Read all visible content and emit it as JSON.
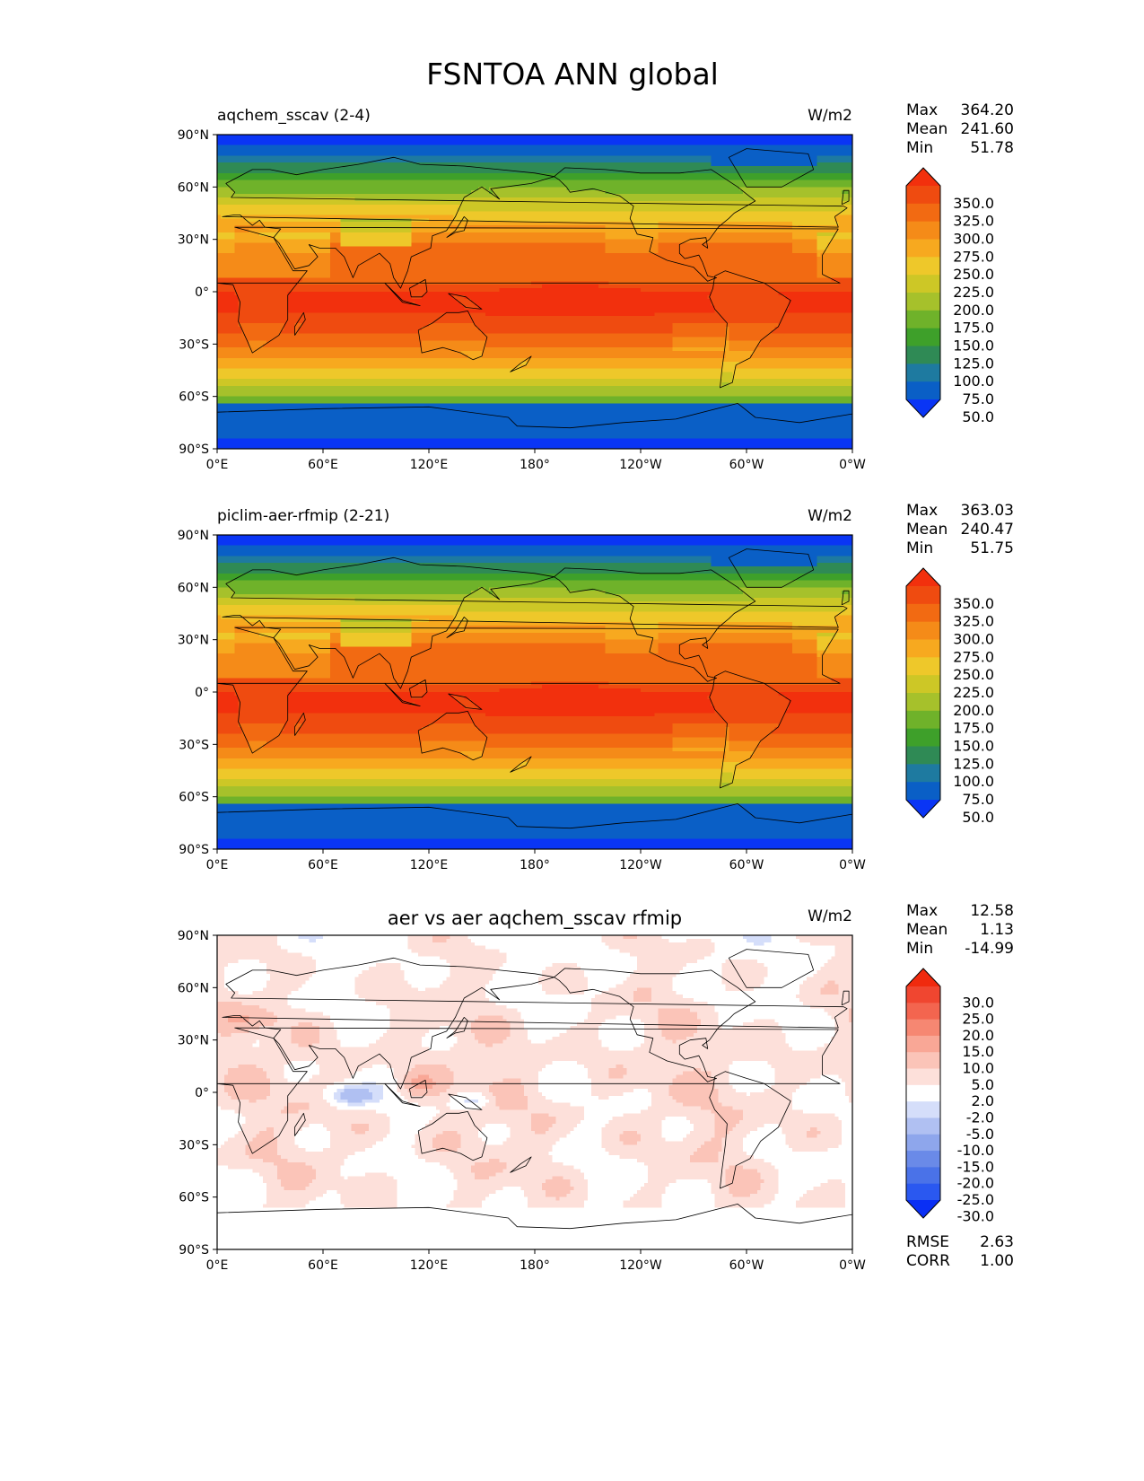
{
  "figure_title": "FSNTOA ANN global",
  "chart_data": [
    {
      "type": "heatmap",
      "title": "aqchem_sscav (2-4)",
      "units": "W/m2",
      "stats": [
        {
          "label": "Max",
          "value": "364.20"
        },
        {
          "label": "Mean",
          "value": "241.60"
        },
        {
          "label": "Min",
          "value": "51.78"
        }
      ],
      "colorbar": {
        "levels": [
          50,
          75,
          100,
          125,
          150,
          175,
          200,
          225,
          250,
          275,
          300,
          325,
          350
        ],
        "labels": [
          "350.0",
          "325.0",
          "300.0",
          "275.0",
          "250.0",
          "225.0",
          "200.0",
          "175.0",
          "150.0",
          "125.0",
          "100.0",
          "75.0",
          "50.0"
        ],
        "colors": [
          "#0a35f5",
          "#0a5fc6",
          "#1e7aa0",
          "#2f8a55",
          "#3ea02a",
          "#6fb22a",
          "#a6c12b",
          "#cdc726",
          "#eec82a",
          "#f7a91f",
          "#f58b18",
          "#f26a12",
          "#ef4b10",
          "#f2300d"
        ]
      },
      "xticks": [
        "0°E",
        "60°E",
        "120°E",
        "180°",
        "120°W",
        "60°W",
        "0°W"
      ],
      "yticks": [
        "90°N",
        "60°N",
        "30°N",
        "0°",
        "30°S",
        "60°S",
        "90°S"
      ],
      "xlim": [
        0,
        360
      ],
      "ylim": [
        -90,
        90
      ]
    },
    {
      "type": "heatmap",
      "title": "piclim-aer-rfmip (2-21)",
      "units": "W/m2",
      "stats": [
        {
          "label": "Max",
          "value": "363.03"
        },
        {
          "label": "Mean",
          "value": "240.47"
        },
        {
          "label": "Min",
          "value": "51.75"
        }
      ],
      "colorbar": {
        "levels": [
          50,
          75,
          100,
          125,
          150,
          175,
          200,
          225,
          250,
          275,
          300,
          325,
          350
        ],
        "labels": [
          "350.0",
          "325.0",
          "300.0",
          "275.0",
          "250.0",
          "225.0",
          "200.0",
          "175.0",
          "150.0",
          "125.0",
          "100.0",
          "75.0",
          "50.0"
        ],
        "colors": [
          "#0a35f5",
          "#0a5fc6",
          "#1e7aa0",
          "#2f8a55",
          "#3ea02a",
          "#6fb22a",
          "#a6c12b",
          "#cdc726",
          "#eec82a",
          "#f7a91f",
          "#f58b18",
          "#f26a12",
          "#ef4b10",
          "#f2300d"
        ]
      },
      "xticks": [
        "0°E",
        "60°E",
        "120°E",
        "180°",
        "120°W",
        "60°W",
        "0°W"
      ],
      "yticks": [
        "90°N",
        "60°N",
        "30°N",
        "0°",
        "30°S",
        "60°S",
        "90°S"
      ],
      "xlim": [
        0,
        360
      ],
      "ylim": [
        -90,
        90
      ]
    },
    {
      "type": "heatmap",
      "title": "aer vs aer aqchem_sscav rfmip",
      "units": "W/m2",
      "stats": [
        {
          "label": "Max",
          "value": "12.58"
        },
        {
          "label": "Mean",
          "value": "1.13"
        },
        {
          "label": "Min",
          "value": "-14.99"
        }
      ],
      "extra_stats": [
        {
          "label": "RMSE",
          "value": "2.63"
        },
        {
          "label": "CORR",
          "value": "1.00"
        }
      ],
      "colorbar": {
        "levels": [
          -30,
          -25,
          -20,
          -15,
          -10,
          -5,
          -2,
          2,
          5,
          10,
          15,
          20,
          25,
          30
        ],
        "labels": [
          "30.0",
          "25.0",
          "20.0",
          "15.0",
          "10.0",
          "5.0",
          "2.0",
          "-2.0",
          "-5.0",
          "-10.0",
          "-15.0",
          "-20.0",
          "-25.0",
          "-30.0"
        ],
        "colors": [
          "#0a2ff5",
          "#2a58f0",
          "#4a72e8",
          "#6a8ae8",
          "#8ea6ec",
          "#b0c0f2",
          "#d5defa",
          "#ffffff",
          "#fde0da",
          "#fbc4b8",
          "#f9a796",
          "#f68772",
          "#f3654f",
          "#f04630",
          "#f02a0e"
        ]
      },
      "xticks": [
        "0°E",
        "60°E",
        "120°E",
        "180°",
        "120°W",
        "60°W",
        "0°W"
      ],
      "yticks": [
        "90°N",
        "60°N",
        "30°N",
        "0°",
        "30°S",
        "60°S",
        "90°S"
      ],
      "xlim": [
        0,
        360
      ],
      "ylim": [
        -90,
        90
      ]
    }
  ]
}
